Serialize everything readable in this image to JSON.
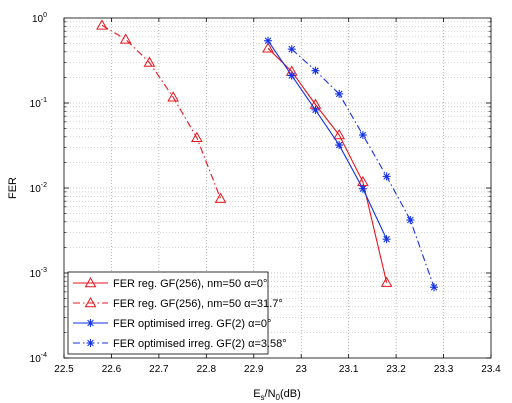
{
  "chart_data": {
    "type": "line",
    "title": "",
    "xlabel": "E_s/N_0(dB)",
    "xlabel_parts": {
      "main": "E",
      "sub1": "s",
      "mid": "/N",
      "sub2": "0",
      "tail": "(dB)"
    },
    "ylabel": "FER",
    "xlim": [
      22.5,
      23.4
    ],
    "ylim": [
      0.0001,
      1
    ],
    "yscale": "log",
    "grid": true,
    "legend_position": "bottom-left",
    "x_ticks": [
      "22.5",
      "22.6",
      "22.7",
      "22.8",
      "22.9",
      "23",
      "23.1",
      "23.2",
      "23.3",
      "23.4"
    ],
    "y_ticks": [
      {
        "base": "10",
        "exp": "0"
      },
      {
        "base": "10",
        "exp": "-1"
      },
      {
        "base": "10",
        "exp": "-2"
      },
      {
        "base": "10",
        "exp": "-3"
      },
      {
        "base": "10",
        "exp": "-4"
      }
    ],
    "series": [
      {
        "name": "FER reg. GF(256), nm=50 α=0°",
        "color": "#e8141e",
        "dash": "solid",
        "marker": "triangle",
        "x": [
          22.93,
          22.98,
          23.03,
          23.08,
          23.13,
          23.18
        ],
        "y": [
          0.44,
          0.235,
          0.096,
          0.042,
          0.0118,
          0.00077
        ]
      },
      {
        "name": "FER reg. GF(256), nm=50 α=31.7°",
        "color": "#e8141e",
        "dash": "dashdot",
        "marker": "triangle",
        "x": [
          22.58,
          22.63,
          22.68,
          22.73,
          22.78,
          22.83
        ],
        "y": [
          0.82,
          0.56,
          0.3,
          0.117,
          0.039,
          0.0075
        ]
      },
      {
        "name": "FER optimised irreg. GF(2) α=0°",
        "color": "#1432e6",
        "dash": "solid",
        "marker": "asterisk",
        "x": [
          22.93,
          22.98,
          23.03,
          23.08,
          23.13,
          23.18
        ],
        "y": [
          0.54,
          0.21,
          0.083,
          0.032,
          0.0098,
          0.0025
        ]
      },
      {
        "name": "FER optimised irreg. GF(2) α=3.58°",
        "color": "#1432e6",
        "dash": "dashdot",
        "marker": "asterisk",
        "x": [
          22.98,
          23.03,
          23.08,
          23.13,
          23.18,
          23.23,
          23.28
        ],
        "y": [
          0.43,
          0.24,
          0.128,
          0.042,
          0.0137,
          0.0042,
          0.00068
        ]
      }
    ]
  }
}
